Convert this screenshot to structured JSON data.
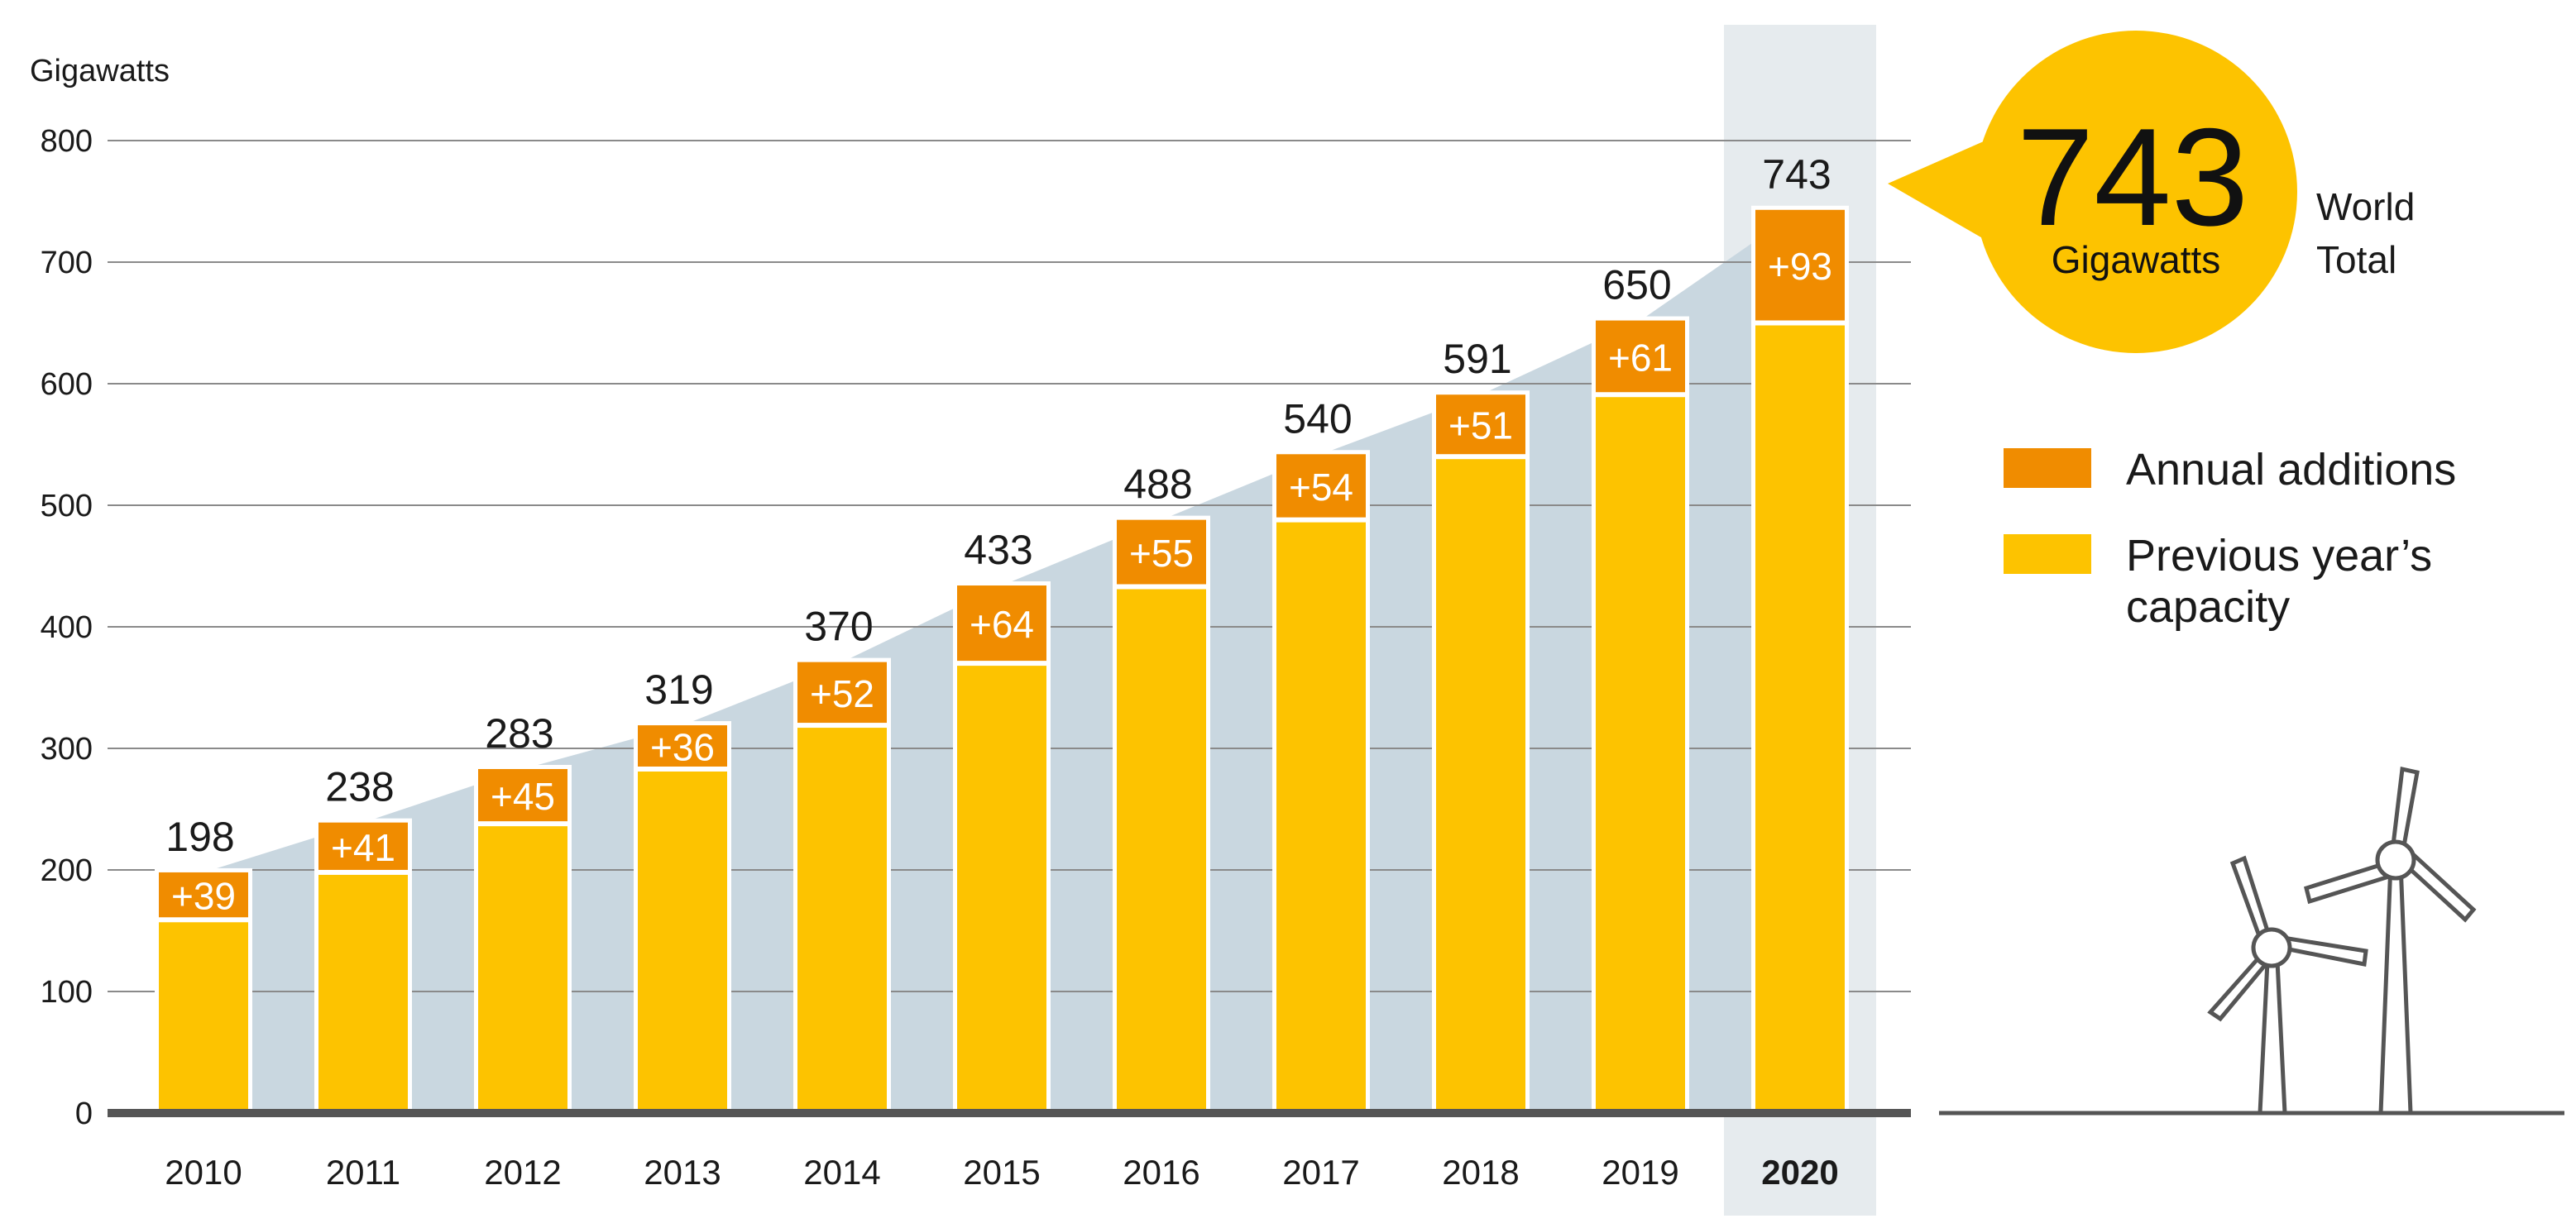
{
  "colors": {
    "previous": "#FDC300",
    "additions": "#F08C00",
    "area": "#C9D7E0",
    "highlight": "#E6EBEE",
    "grid": "#8A8A8A",
    "axis": "#555555",
    "bubble": "#FDC300"
  },
  "chart_data": {
    "type": "bar",
    "stacked": true,
    "ylabel": "Gigawatts",
    "ylim": [
      0,
      800
    ],
    "yticks": [
      "0",
      "100",
      "200",
      "300",
      "400",
      "500",
      "600",
      "700",
      "800"
    ],
    "categories": [
      "2010",
      "2011",
      "2012",
      "2013",
      "2014",
      "2015",
      "2016",
      "2017",
      "2018",
      "2019",
      "2020"
    ],
    "highlight_category": "2020",
    "series": [
      {
        "name": "Previous year's capacity",
        "values": [
          159,
          198,
          238,
          283,
          319,
          370,
          433,
          488,
          540,
          591,
          650
        ]
      },
      {
        "name": "Annual additions",
        "values": [
          39,
          41,
          45,
          36,
          52,
          64,
          55,
          54,
          51,
          61,
          93
        ]
      }
    ],
    "total_labels": [
      "198",
      "238",
      "283",
      "319",
      "370",
      "433",
      "488",
      "540",
      "591",
      "650",
      "743"
    ],
    "addition_labels": [
      "+39",
      "+41",
      "+45",
      "+36",
      "+52",
      "+64",
      "+55",
      "+54",
      "+51",
      "+61",
      "+93"
    ],
    "legend": {
      "additions_label": "Annual additions",
      "previous_line1": "Previous year’s",
      "previous_line2": "capacity"
    },
    "callout": {
      "value": "743",
      "unit": "Gigawatts",
      "side_line1": "World",
      "side_line2": "Total"
    }
  }
}
